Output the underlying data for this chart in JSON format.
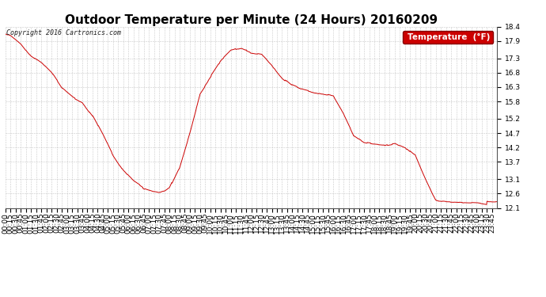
{
  "title": "Outdoor Temperature per Minute (24 Hours) 20160209",
  "copyright_text": "Copyright 2016 Cartronics.com",
  "legend_label": "Temperature  (°F)",
  "line_color": "#cc0000",
  "legend_bg": "#cc0000",
  "legend_text_color": "#ffffff",
  "background_color": "#ffffff",
  "grid_color": "#bbbbbb",
  "ylim": [
    12.1,
    18.4
  ],
  "yticks": [
    12.1,
    12.6,
    13.1,
    13.7,
    14.2,
    14.7,
    15.2,
    15.8,
    16.3,
    16.8,
    17.3,
    17.9,
    18.4
  ],
  "title_fontsize": 11,
  "tick_fontsize": 6.5,
  "total_minutes": 1440
}
